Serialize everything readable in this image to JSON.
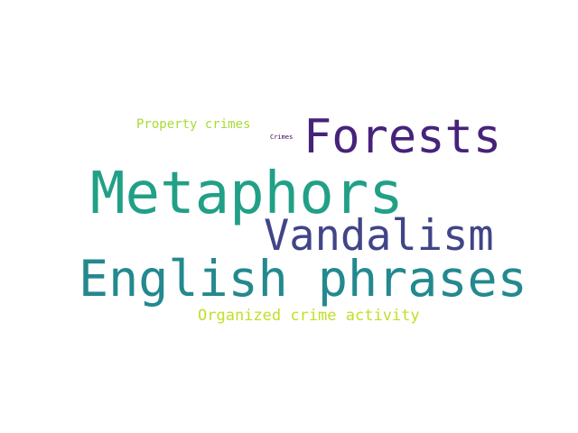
{
  "words": [
    {
      "id": "w-forests",
      "text": "Forests",
      "color": "#46237a"
    },
    {
      "id": "w-metaphors",
      "text": "Metaphors",
      "color": "#21a087"
    },
    {
      "id": "w-vandalism",
      "text": "Vandalism",
      "color": "#414487"
    },
    {
      "id": "w-english",
      "text": "English phrases",
      "color": "#23898e"
    },
    {
      "id": "w-property",
      "text": "Property crimes",
      "color": "#a8db34"
    },
    {
      "id": "w-crimes",
      "text": "Crimes",
      "color": "#440154"
    },
    {
      "id": "w-organized",
      "text": "Organized crime activity",
      "color": "#c0df25"
    }
  ]
}
